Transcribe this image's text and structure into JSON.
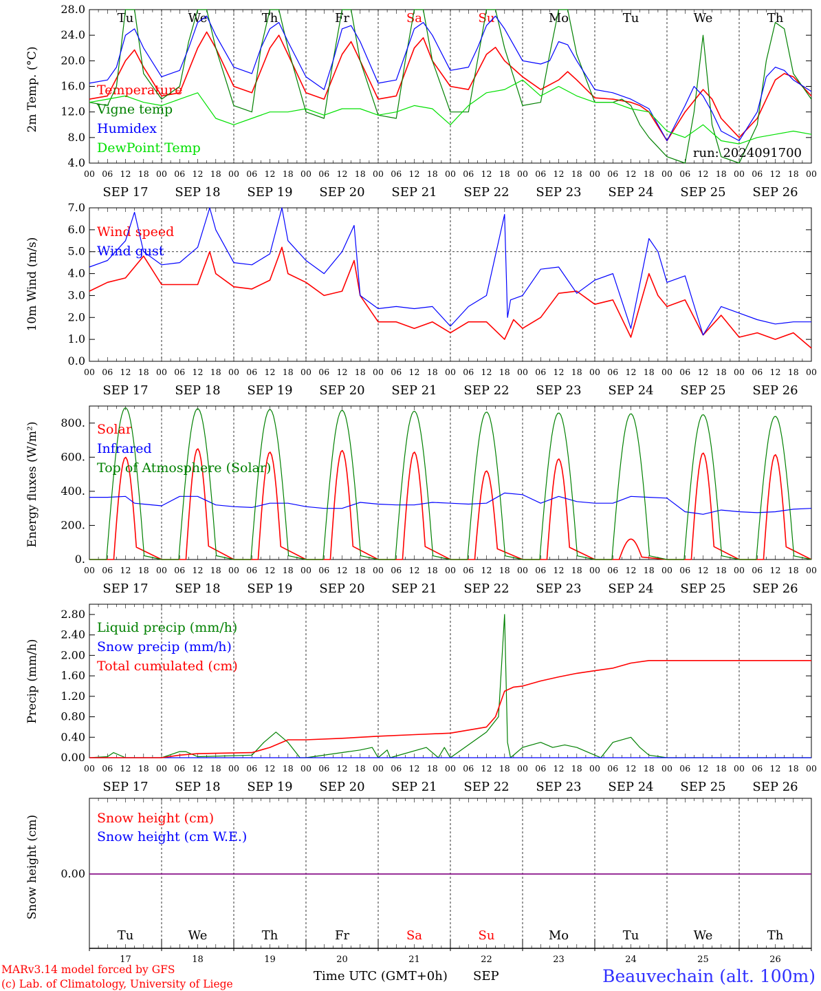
{
  "days": [
    "SEP 17",
    "SEP 18",
    "SEP 19",
    "SEP 20",
    "SEP 21",
    "SEP 22",
    "SEP 23",
    "SEP 24",
    "SEP 25",
    "SEP 26"
  ],
  "weekdays": [
    "Tu",
    "We",
    "Th",
    "Fr",
    "Sa",
    "Su",
    "Mo",
    "Tu",
    "We",
    "Th"
  ],
  "weekend_days": [
    "Sa",
    "Su"
  ],
  "day_numbers": [
    "17",
    "18",
    "19",
    "20",
    "21",
    "22",
    "23",
    "24",
    "25",
    "26"
  ],
  "hour_ticks": [
    "00",
    "06",
    "12",
    "18"
  ],
  "footer": {
    "model": "MARv3.14 model forced by GFS",
    "copyright": "(c) Lab. of Climatology, University of Liege",
    "xlabel": "Time UTC (GMT+0h)",
    "month": "SEP",
    "station": "Beauvechain (alt. 100m)"
  },
  "colors": {
    "red": "#ff0000",
    "green": "#008000",
    "blue": "#0000ff",
    "lime": "#00e000",
    "purple": "#800080",
    "station": "#3030ff"
  },
  "chart_data": [
    {
      "type": "line",
      "ylabel": "2m Temp. (°C)",
      "ylim": [
        4,
        28
      ],
      "yticks": [
        "28.0",
        "24.0",
        "20.0",
        "16.0",
        "12.0",
        "8.0",
        "4.0"
      ],
      "run_label": "run: 2024091700",
      "x_unit": "hours since SEP 17 00 UTC",
      "series": [
        {
          "name": "Temperature",
          "color": "red",
          "x": [
            0,
            6,
            12,
            15,
            18,
            24,
            30,
            36,
            39,
            42,
            48,
            54,
            60,
            63,
            66,
            72,
            78,
            84,
            87,
            90,
            96,
            102,
            108,
            111,
            114,
            120,
            126,
            132,
            135,
            138,
            144,
            150,
            156,
            159,
            162,
            168,
            174,
            180,
            183,
            186,
            192,
            198,
            204,
            207,
            210,
            216,
            222,
            228,
            231,
            234,
            240
          ],
          "y": [
            14,
            14.5,
            20,
            21.7,
            19,
            14.5,
            15,
            22,
            24.5,
            22,
            16,
            15,
            22,
            24,
            21,
            15,
            14,
            21,
            23,
            20,
            14,
            14.5,
            22,
            23.6,
            20,
            16,
            15.5,
            21,
            22.1,
            20,
            17.5,
            15.5,
            17,
            18.3,
            17,
            14.2,
            14,
            13.5,
            13,
            12,
            7.5,
            12,
            15.5,
            14,
            11,
            8,
            11,
            17,
            18,
            17.5,
            14.5
          ]
        },
        {
          "name": "Vigne temp",
          "color": "green",
          "x": [
            0,
            6,
            9,
            12,
            15,
            18,
            24,
            30,
            33,
            36,
            39,
            42,
            48,
            54,
            57,
            60,
            63,
            66,
            72,
            78,
            81,
            84,
            87,
            90,
            96,
            102,
            105,
            108,
            111,
            114,
            120,
            126,
            129,
            132,
            135,
            138,
            144,
            150,
            153,
            156,
            159,
            162,
            168,
            174,
            177,
            180,
            183,
            186,
            192,
            198,
            201,
            204,
            207,
            210,
            216,
            222,
            225,
            228,
            231,
            234,
            240
          ],
          "y": [
            13.5,
            13,
            16,
            28,
            28,
            18,
            14,
            16,
            23,
            28,
            28,
            22,
            13,
            12,
            22,
            28,
            28,
            22,
            12,
            11,
            20,
            28,
            28,
            20,
            11.5,
            11,
            20,
            28,
            28,
            20,
            12,
            12,
            20,
            28,
            28,
            22,
            13,
            13.5,
            21,
            28,
            28,
            21,
            13.5,
            13.5,
            14,
            13,
            10,
            8,
            5,
            4,
            12,
            24,
            10,
            5,
            4,
            10,
            20,
            26,
            25,
            18,
            14
          ]
        },
        {
          "name": "Humidex",
          "color": "blue",
          "x": [
            0,
            6,
            9,
            12,
            15,
            18,
            24,
            30,
            33,
            36,
            39,
            42,
            48,
            54,
            57,
            60,
            63,
            66,
            72,
            78,
            81,
            84,
            87,
            90,
            96,
            102,
            105,
            108,
            111,
            114,
            120,
            126,
            129,
            132,
            135,
            138,
            144,
            150,
            153,
            156,
            159,
            162,
            168,
            174,
            180,
            186,
            192,
            198,
            201,
            204,
            207,
            210,
            216,
            222,
            225,
            228,
            231,
            234,
            240
          ],
          "y": [
            16.5,
            17,
            19,
            24,
            25,
            22,
            17.5,
            18.5,
            22,
            26,
            27,
            24,
            19,
            18,
            22,
            25,
            26,
            23,
            17.5,
            15.5,
            20,
            25,
            25.5,
            23,
            16.5,
            17,
            21,
            25,
            26,
            24,
            18.5,
            19,
            22,
            25.5,
            27,
            25,
            20,
            19.5,
            20,
            23,
            22.5,
            20,
            15.5,
            15,
            14,
            12.5,
            7.5,
            13,
            16,
            14.5,
            12,
            9,
            7.5,
            12,
            17.5,
            19,
            18.5,
            17,
            15.2
          ]
        },
        {
          "name": "DewPoint Temp",
          "color": "lime",
          "x": [
            0,
            6,
            12,
            18,
            24,
            30,
            36,
            42,
            48,
            54,
            60,
            66,
            72,
            78,
            84,
            90,
            96,
            102,
            108,
            114,
            120,
            126,
            132,
            138,
            144,
            150,
            156,
            162,
            168,
            174,
            180,
            186,
            192,
            198,
            204,
            210,
            216,
            222,
            228,
            234,
            240
          ],
          "y": [
            13.5,
            14,
            14.5,
            13.5,
            13,
            14,
            15,
            11,
            10,
            11,
            12,
            12,
            12.5,
            11.5,
            12.5,
            12.5,
            11.5,
            12,
            13,
            12.5,
            10,
            13,
            15,
            15.5,
            17,
            14.5,
            16,
            14.5,
            13.5,
            13.5,
            12.5,
            12,
            9,
            8,
            10,
            7.5,
            7,
            8,
            8.5,
            9,
            8.5
          ]
        }
      ]
    },
    {
      "type": "line",
      "ylabel": "10m Wind (m/s)",
      "ylim": [
        0,
        7
      ],
      "yticks": [
        "7.0",
        "6.0",
        "5.0",
        "4.0",
        "3.0",
        "2.0",
        "1.0",
        "0.0"
      ],
      "ref_line": 5,
      "series": [
        {
          "name": "Wind speed",
          "color": "red",
          "x": [
            0,
            6,
            12,
            18,
            24,
            30,
            36,
            40,
            42,
            48,
            54,
            60,
            64,
            66,
            72,
            78,
            84,
            88,
            90,
            96,
            102,
            108,
            114,
            120,
            126,
            132,
            138,
            141,
            144,
            150,
            156,
            162,
            168,
            174,
            180,
            186,
            189,
            192,
            198,
            204,
            210,
            216,
            222,
            228,
            234,
            240
          ],
          "y": [
            3.2,
            3.6,
            3.8,
            4.8,
            3.5,
            3.5,
            3.5,
            5,
            4,
            3.4,
            3.3,
            3.7,
            5.2,
            4,
            3.6,
            3,
            3.2,
            4.6,
            3,
            1.8,
            1.8,
            1.5,
            1.8,
            1.3,
            1.8,
            1.8,
            1,
            1.9,
            1.5,
            2,
            3.1,
            3.2,
            2.6,
            2.8,
            1.1,
            4,
            3,
            2.5,
            2.8,
            1.2,
            2.1,
            1.1,
            1.3,
            1,
            1.3,
            0.6
          ]
        },
        {
          "name": "Wind gust",
          "color": "blue",
          "x": [
            0,
            6,
            12,
            15,
            18,
            24,
            30,
            36,
            40,
            42,
            48,
            54,
            60,
            64,
            66,
            72,
            78,
            84,
            88,
            90,
            96,
            102,
            108,
            114,
            120,
            126,
            132,
            138,
            139,
            140,
            144,
            150,
            156,
            162,
            168,
            174,
            180,
            186,
            189,
            192,
            198,
            204,
            210,
            216,
            222,
            228,
            234,
            240
          ],
          "y": [
            4.3,
            4.6,
            5.5,
            6.8,
            5,
            4.4,
            4.5,
            5.2,
            7,
            6,
            4.5,
            4.4,
            4.9,
            7,
            5.5,
            4.6,
            4,
            5,
            6.2,
            3,
            2.4,
            2.5,
            2.4,
            2.5,
            1.6,
            2.5,
            3,
            6.7,
            2,
            2.8,
            3,
            4.2,
            4.3,
            3.1,
            3.7,
            4,
            1.5,
            5.6,
            5,
            3.6,
            3.9,
            1.2,
            2.5,
            2.2,
            1.9,
            1.7,
            1.8,
            1.8
          ]
        }
      ]
    },
    {
      "type": "line",
      "ylabel": "Energy fluxes (W/m²)",
      "ylim": [
        0,
        900
      ],
      "yticks": [
        "800.",
        "600.",
        "400.",
        "200.",
        "0."
      ],
      "series": [
        {
          "name": "Solar",
          "color": "red",
          "peaks": [
            600,
            650,
            630,
            640,
            630,
            520,
            590,
            120,
            625,
            615
          ]
        },
        {
          "name": "Infrared",
          "color": "blue",
          "x": [
            0,
            6,
            12,
            15,
            18,
            24,
            30,
            36,
            42,
            48,
            54,
            60,
            66,
            72,
            78,
            84,
            90,
            96,
            102,
            108,
            114,
            120,
            126,
            132,
            138,
            144,
            150,
            156,
            162,
            168,
            174,
            180,
            186,
            192,
            198,
            204,
            210,
            216,
            222,
            228,
            234,
            240
          ],
          "y": [
            365,
            365,
            370,
            330,
            325,
            315,
            370,
            370,
            320,
            310,
            305,
            330,
            330,
            310,
            300,
            300,
            335,
            325,
            320,
            320,
            335,
            330,
            325,
            330,
            390,
            380,
            330,
            370,
            340,
            330,
            330,
            370,
            365,
            360,
            280,
            265,
            290,
            280,
            275,
            280,
            295,
            300
          ]
        },
        {
          "name": "Top of Atmosphere (Solar)",
          "color": "green",
          "peaks": [
            890,
            885,
            880,
            875,
            870,
            865,
            860,
            855,
            850,
            840
          ]
        }
      ]
    },
    {
      "type": "line",
      "ylabel": "Precip (mm/h)",
      "ylim": [
        0,
        3
      ],
      "yticks": [
        "2.80",
        "2.40",
        "2.00",
        "1.60",
        "1.20",
        "0.80",
        "0.40",
        "0.00"
      ],
      "series": [
        {
          "name": "Liquid precip (mm/h)",
          "color": "green",
          "x": [
            0,
            6,
            8,
            12,
            24,
            30,
            32,
            36,
            54,
            58,
            62,
            66,
            70,
            72,
            90,
            94,
            96,
            99,
            100,
            112,
            114,
            116,
            118,
            120,
            132,
            136,
            138,
            139,
            140,
            144,
            150,
            154,
            158,
            162,
            166,
            170,
            174,
            180,
            183,
            186,
            192,
            240
          ],
          "y": [
            0,
            0.02,
            0.1,
            0,
            0,
            0.12,
            0.12,
            0.02,
            0.05,
            0.3,
            0.5,
            0.3,
            0,
            0,
            0.15,
            0.2,
            0,
            0.15,
            0,
            0.2,
            0.1,
            0,
            0.2,
            0,
            0.5,
            0.8,
            2.8,
            0.3,
            0,
            0.2,
            0.3,
            0.2,
            0.25,
            0.2,
            0.1,
            0,
            0.3,
            0.4,
            0.2,
            0.05,
            0,
            0
          ]
        },
        {
          "name": "Snow precip (mm/h)",
          "color": "blue",
          "x": [
            0,
            240
          ],
          "y": [
            0,
            0
          ]
        },
        {
          "name": "Total cumulated (cm)",
          "color": "red",
          "x": [
            0,
            24,
            30,
            36,
            54,
            60,
            66,
            72,
            84,
            96,
            108,
            120,
            132,
            135,
            138,
            141,
            144,
            150,
            156,
            162,
            168,
            174,
            180,
            186,
            192,
            240
          ],
          "y": [
            0,
            0,
            0.05,
            0.08,
            0.1,
            0.2,
            0.35,
            0.35,
            0.38,
            0.42,
            0.45,
            0.48,
            0.6,
            0.8,
            1.3,
            1.38,
            1.4,
            1.5,
            1.58,
            1.65,
            1.7,
            1.75,
            1.85,
            1.9,
            1.9,
            1.9
          ]
        }
      ]
    },
    {
      "type": "line",
      "ylabel": "Snow height (cm)",
      "yticks": [
        "0.00"
      ],
      "series": [
        {
          "name": "Snow height (cm)",
          "color": "red",
          "x": [
            0,
            240
          ],
          "y": [
            0,
            0
          ]
        },
        {
          "name": "Snow height (cm W.E.)",
          "color": "blue",
          "x": [
            0,
            240
          ],
          "y": [
            0,
            0
          ]
        }
      ]
    }
  ]
}
